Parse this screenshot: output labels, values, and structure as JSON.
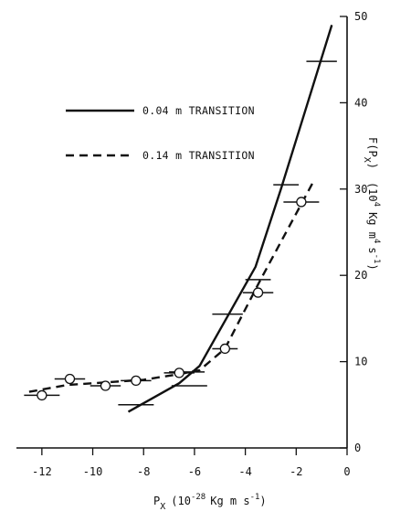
{
  "chart_data": {
    "type": "line",
    "xlabel_main": "P",
    "xlabel_sub": "X",
    "xlabel_rest": "(10",
    "xlabel_exp": "-28",
    "xlabel_tail": "Kg m s",
    "xlabel_tail_exp": "-1",
    "xlabel_close": ")",
    "ylabel": {
      "f": "F(P",
      "f_sub": "X",
      "f_close": ")",
      "unit_open": "(10",
      "unit_exp1": "4",
      "unit_mid": "Kg m",
      "unit_exp2": "4",
      "unit_s": "s",
      "unit_exp3": "-1",
      "unit_close": ")"
    },
    "xlim": [
      -13,
      0
    ],
    "ylim": [
      0,
      50
    ],
    "xticks": [
      -12,
      -10,
      -8,
      -6,
      -4,
      -2,
      0
    ],
    "xtick_labels": [
      "-12",
      "-10",
      "-8",
      "-6",
      "-4",
      "-2",
      "0"
    ],
    "yticks": [
      0,
      10,
      20,
      30,
      40,
      50
    ],
    "ytick_labels": [
      "0",
      "10",
      "20",
      "30",
      "40",
      "50"
    ],
    "legend_position": "top-left",
    "series": [
      {
        "name": "0.04 m TRANSITION",
        "style": "solid",
        "marker": "none",
        "line": [
          [
            -8.6,
            4.2
          ],
          [
            -6.6,
            7.5
          ],
          [
            -5.8,
            9.5
          ],
          [
            -3.6,
            21.0
          ],
          [
            -2.6,
            30.0
          ],
          [
            -0.6,
            49.0
          ]
        ],
        "points": [
          {
            "x": -8.3,
            "y": 5.0,
            "xerr": 0.7
          },
          {
            "x": -6.2,
            "y": 7.2,
            "xerr": 0.7
          },
          {
            "x": -6.3,
            "y": 8.8,
            "xerr": 0.7
          },
          {
            "x": -4.7,
            "y": 15.5,
            "xerr": 0.6
          },
          {
            "x": -3.5,
            "y": 19.5,
            "xerr": 0.5
          },
          {
            "x": -2.4,
            "y": 30.5,
            "xerr": 0.5
          },
          {
            "x": -1.0,
            "y": 44.8,
            "xerr": 0.6
          }
        ]
      },
      {
        "name": "0.14 m TRANSITION",
        "style": "dashed",
        "marker": "circle",
        "line": [
          [
            -12.5,
            6.5
          ],
          [
            -11.0,
            7.3
          ],
          [
            -9.5,
            7.6
          ],
          [
            -8.0,
            7.9
          ],
          [
            -6.5,
            8.6
          ],
          [
            -5.8,
            9.0
          ],
          [
            -4.8,
            11.5
          ],
          [
            -3.4,
            19.5
          ],
          [
            -1.3,
            31.0
          ]
        ],
        "points": [
          {
            "x": -12.0,
            "y": 6.1,
            "xerr": 0.7
          },
          {
            "x": -10.9,
            "y": 8.0,
            "xerr": 0.6
          },
          {
            "x": -9.5,
            "y": 7.2,
            "xerr": 0.6
          },
          {
            "x": -8.3,
            "y": 7.8,
            "xerr": 0.6
          },
          {
            "x": -6.6,
            "y": 8.7,
            "xerr": 0.6
          },
          {
            "x": -4.8,
            "y": 11.5,
            "xerr": 0.5
          },
          {
            "x": -3.5,
            "y": 18.0,
            "xerr": 0.6
          },
          {
            "x": -1.8,
            "y": 28.5,
            "xerr": 0.7
          }
        ]
      }
    ]
  }
}
